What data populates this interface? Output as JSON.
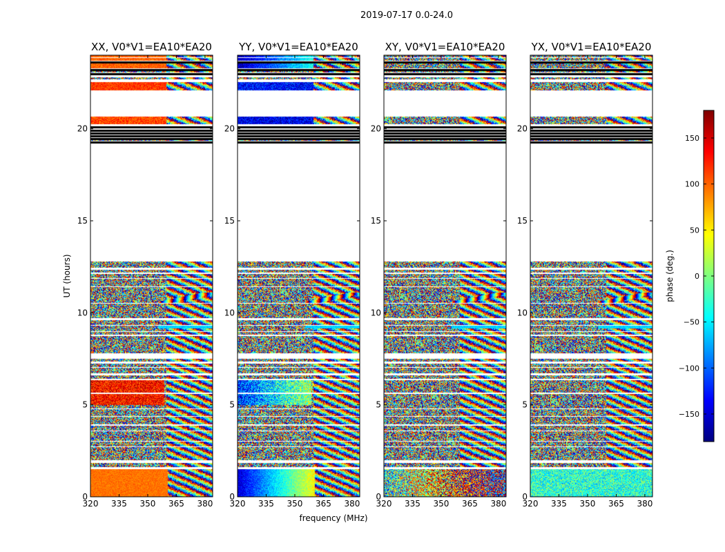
{
  "figure": {
    "suptitle": "2019-07-17 0.0-24.0"
  },
  "chart_data": {
    "type": "heatmap",
    "xlabel": "frequency (MHz)",
    "ylabel": "UT (hours)",
    "xlim": [
      320,
      384
    ],
    "ylim": [
      0,
      24
    ],
    "xticks": [
      320,
      335,
      350,
      365,
      380
    ],
    "yticks": [
      0,
      5,
      10,
      15,
      20
    ],
    "colorbar": {
      "label": "phase (deg.)",
      "range": [
        -180,
        180
      ],
      "ticks": [
        150,
        100,
        50,
        0,
        -50,
        -100,
        -150
      ],
      "tick_labels": [
        "150",
        "100",
        "50",
        "0",
        "−50",
        "−100",
        "−150"
      ],
      "colormap": "jet",
      "colors": [
        "#00007f",
        "#0000ff",
        "#007fff",
        "#00ffff",
        "#7fff7f",
        "#ffff00",
        "#ff7f00",
        "#ff0000",
        "#7f0000"
      ]
    },
    "panels": [
      {
        "title": "XX, V0*V1=EA10*EA20",
        "mode": "xx"
      },
      {
        "title": "YY, V0*V1=EA10*EA20",
        "mode": "yy"
      },
      {
        "title": "XY, V0*V1=EA10*EA20",
        "mode": "xy"
      },
      {
        "title": "YX, V0*V1=EA10*EA20",
        "mode": "yx"
      }
    ],
    "data_bands_ut": [
      [
        0.0,
        0.3
      ],
      [
        0.3,
        1.5
      ],
      [
        1.6,
        1.85
      ],
      [
        2.0,
        2.7
      ],
      [
        2.75,
        3.0
      ],
      [
        3.05,
        3.55
      ],
      [
        3.6,
        3.85
      ],
      [
        3.95,
        4.35
      ],
      [
        4.4,
        4.75
      ],
      [
        4.8,
        5.6
      ],
      [
        5.65,
        6.35
      ],
      [
        6.4,
        6.6
      ],
      [
        6.7,
        7.0
      ],
      [
        7.05,
        7.25
      ],
      [
        7.35,
        7.5
      ],
      [
        7.8,
        8.75
      ],
      [
        8.8,
        8.95
      ],
      [
        9.0,
        9.3
      ],
      [
        9.35,
        9.6
      ],
      [
        9.7,
        10.5
      ],
      [
        10.55,
        11.4
      ],
      [
        11.45,
        11.85
      ],
      [
        11.9,
        12.1
      ],
      [
        12.2,
        12.35
      ],
      [
        12.45,
        12.8
      ],
      [
        19.35,
        19.4
      ],
      [
        19.55,
        19.6
      ],
      [
        19.7,
        19.75
      ],
      [
        19.85,
        19.9
      ],
      [
        20.05,
        20.1
      ],
      [
        20.25,
        20.65
      ],
      [
        22.1,
        22.55
      ],
      [
        22.7,
        22.8
      ],
      [
        22.9,
        23.0
      ],
      [
        23.05,
        23.2
      ],
      [
        23.3,
        23.6
      ],
      [
        23.7,
        23.85
      ],
      [
        23.9,
        24.0
      ]
    ]
  }
}
